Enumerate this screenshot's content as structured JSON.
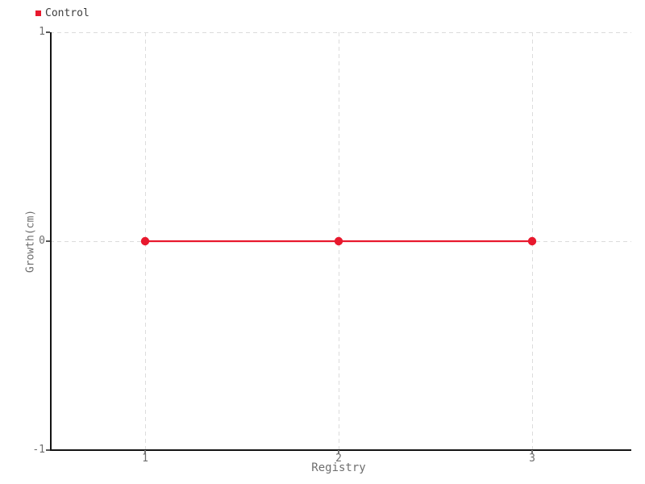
{
  "chart": {
    "legend": {
      "items": [
        {
          "label": "Control",
          "color": "#e8192e"
        }
      ],
      "position": "top-left"
    },
    "colors": {
      "axis": "#141414",
      "grid": "#dcdcdc",
      "tick_text": "#6e6e6e",
      "legend_text": "#3d3d3d"
    }
  },
  "chart_data": {
    "type": "line",
    "title": "",
    "xlabel": "Registry",
    "ylabel": "Growth(cm)",
    "x": [
      1,
      2,
      3
    ],
    "series": [
      {
        "name": "Control",
        "color": "#e8192e",
        "values": [
          0,
          0,
          0
        ]
      }
    ],
    "xticks": [
      1,
      2,
      3
    ],
    "xtick_labels": [
      "1",
      "2",
      "3"
    ],
    "yticks": [
      1,
      0,
      -1
    ],
    "ytick_labels": [
      "1",
      "0",
      "-1"
    ],
    "xlim": [
      0.5125,
      3.5125
    ],
    "ylim": [
      -1,
      1
    ],
    "grid": "dashed",
    "legend_position": "top-left",
    "marker": "circle"
  }
}
